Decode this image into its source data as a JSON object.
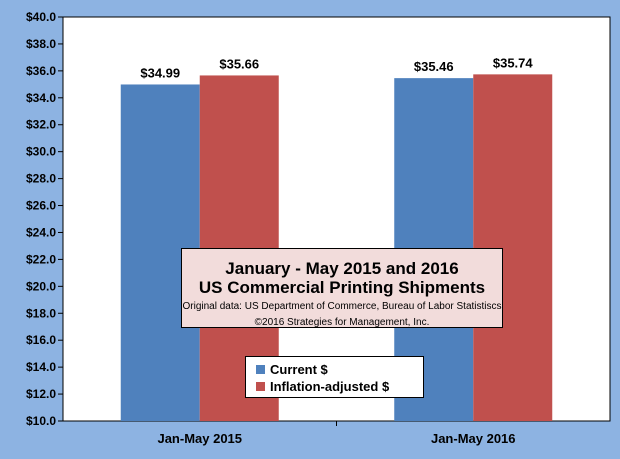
{
  "chart_data": {
    "type": "bar",
    "categories": [
      "Jan-May 2015",
      "Jan-May 2016"
    ],
    "series": [
      {
        "name": "Current $",
        "values": [
          34.99,
          35.46
        ],
        "labels": [
          "$34.99",
          "$35.46"
        ],
        "color": "#4f81bd"
      },
      {
        "name": "Inflation-adjusted $",
        "values": [
          35.66,
          35.74
        ],
        "labels": [
          "$35.66",
          "$35.74"
        ],
        "color": "#c0504d"
      }
    ],
    "title": "January - May 2015 and 2016",
    "subtitle": "US Commercial Printing Shipments",
    "source_lines": [
      "Original data: US Department of Commerce, Bureau of Labor Statistiscs",
      "©2016 Strategies for Management, Inc."
    ],
    "ylim": [
      10,
      40
    ],
    "yticks": [
      "$10.0",
      "$12.0",
      "$14.0",
      "$16.0",
      "$18.0",
      "$20.0",
      "$22.0",
      "$24.0",
      "$26.0",
      "$28.0",
      "$30.0",
      "$32.0",
      "$34.0",
      "$36.0",
      "$38.0",
      "$40.0"
    ],
    "grid": false,
    "legend_position": "bottom-center",
    "background_color": "#8db3e2",
    "plot_background_color": "#ffffff",
    "title_box_color": "#f2dcdb"
  }
}
